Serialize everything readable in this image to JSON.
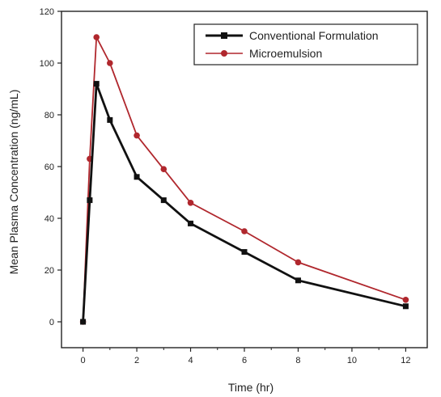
{
  "chart_data": {
    "type": "line",
    "title": "",
    "xlabel": "Time (hr)",
    "ylabel": "Mean Plasma Concentration (ng/mL)",
    "xlim": [
      -0.8,
      12.8
    ],
    "ylim": [
      -10,
      120
    ],
    "xticks": [
      0,
      2,
      4,
      6,
      8,
      10,
      12
    ],
    "yticks": [
      0,
      20,
      40,
      60,
      80,
      100,
      120
    ],
    "grid": false,
    "legend_position": "top-right",
    "series": [
      {
        "name": "Conventional Formulation",
        "color": "#111111",
        "marker": "square",
        "x": [
          0,
          0.25,
          0.5,
          1,
          2,
          3,
          4,
          6,
          8,
          12
        ],
        "y": [
          0,
          47,
          92,
          78,
          56,
          47,
          38,
          27,
          16,
          6
        ]
      },
      {
        "name": "Microemulsion",
        "color": "#b0272d",
        "marker": "circle",
        "x": [
          0,
          0.25,
          0.5,
          1,
          2,
          3,
          4,
          6,
          8,
          12
        ],
        "y": [
          0,
          63,
          110,
          100,
          72,
          59,
          46,
          35,
          23,
          8.5
        ]
      }
    ]
  }
}
